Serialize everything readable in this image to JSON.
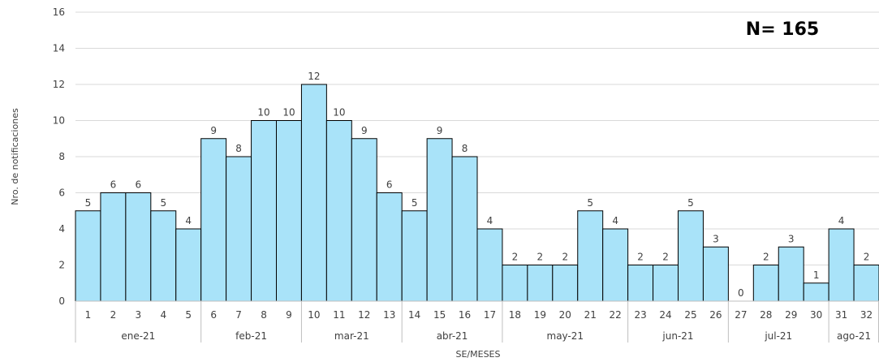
{
  "chart_data": {
    "type": "bar",
    "title": "",
    "annotation": "N= 165",
    "xlabel": "SE/MESES",
    "ylabel": "Nro. de notificaciones",
    "ylim": [
      0,
      16
    ],
    "yticks": [
      0,
      2,
      4,
      6,
      8,
      10,
      12,
      14,
      16
    ],
    "grid": true,
    "legend": "none",
    "categories": [
      "1",
      "2",
      "3",
      "4",
      "5",
      "6",
      "7",
      "8",
      "9",
      "10",
      "11",
      "12",
      "13",
      "14",
      "15",
      "16",
      "17",
      "18",
      "19",
      "20",
      "21",
      "22",
      "23",
      "24",
      "25",
      "26",
      "27",
      "28",
      "29",
      "30",
      "31",
      "32"
    ],
    "values": [
      5,
      6,
      6,
      5,
      4,
      9,
      8,
      10,
      10,
      12,
      10,
      9,
      6,
      5,
      9,
      8,
      4,
      2,
      2,
      2,
      5,
      4,
      2,
      2,
      5,
      3,
      0,
      2,
      3,
      1,
      4,
      2
    ],
    "groups": [
      {
        "label": "ene-21",
        "from": 1,
        "to": 5
      },
      {
        "label": "feb-21",
        "from": 6,
        "to": 9
      },
      {
        "label": "mar-21",
        "from": 10,
        "to": 13
      },
      {
        "label": "abr-21",
        "from": 14,
        "to": 17
      },
      {
        "label": "may-21",
        "from": 18,
        "to": 22
      },
      {
        "label": "jun-21",
        "from": 23,
        "to": 26
      },
      {
        "label": "jul-21",
        "from": 27,
        "to": 30
      },
      {
        "label": "ago-21",
        "from": 31,
        "to": 32
      }
    ],
    "colors": {
      "bar": "#a9e3f9",
      "bar_stroke": "#000000",
      "grid": "#d9d9d9",
      "axis": "#bfbfbf"
    }
  }
}
